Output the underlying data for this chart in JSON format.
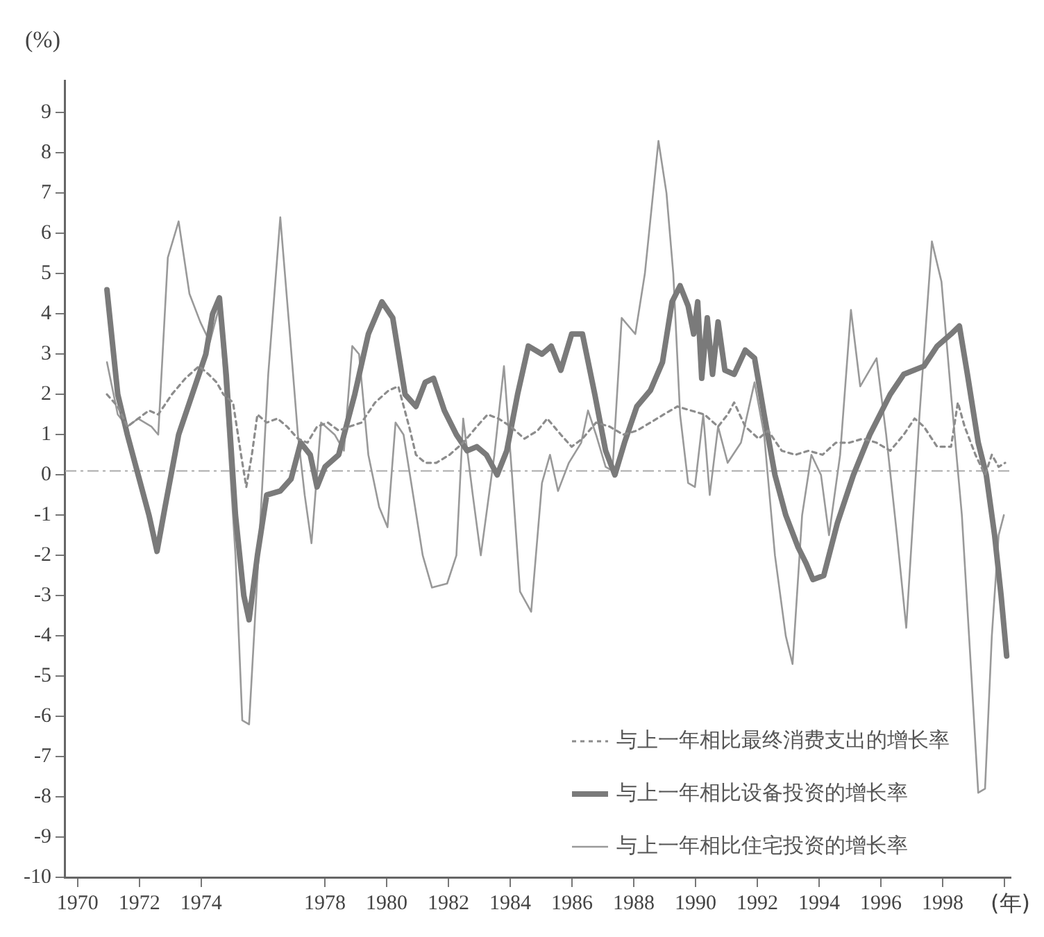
{
  "chart_data": {
    "type": "line",
    "ylabel": "(%)",
    "xlabel": "(年)",
    "xlim": [
      1969.6,
      2000.2
    ],
    "ylim": [
      -10,
      9.8
    ],
    "xticks": [
      1970,
      1972,
      1974,
      1978,
      1980,
      1982,
      1984,
      1986,
      1988,
      1990,
      1992,
      1994,
      1996,
      1998,
      {
        "value": 2000,
        "label": null
      }
    ],
    "yticks": [
      -10,
      -9,
      -8,
      -7,
      -6,
      -5,
      -4,
      -3,
      -2,
      -1,
      0,
      1,
      2,
      3,
      4,
      5,
      6,
      7,
      8,
      9
    ],
    "grid": false,
    "legend": "bottom right",
    "marker": "none",
    "ref_lines": [
      {
        "axis": "y",
        "value": 0.1,
        "color": "#aaaaaa",
        "line_style": "dashed"
      }
    ],
    "series": [
      {
        "name": "与上一年相比最终消费支出的增长率",
        "color": "#8c8c8c",
        "line_style": "dotted",
        "x": [
          1970.95,
          1971.3,
          1971.61,
          1971.96,
          1972.31,
          1972.61,
          1973.05,
          1973.49,
          1973.93,
          1974.24,
          1974.5,
          1974.72,
          1975.03,
          1975.29,
          1975.46,
          1975.64,
          1975.82,
          1976.12,
          1976.47,
          1976.78,
          1977.13,
          1977.44,
          1977.75,
          1978.1,
          1978.45,
          1978.8,
          1979.19,
          1979.63,
          1980.07,
          1980.38,
          1980.73,
          1980.95,
          1981.25,
          1981.61,
          1982.04,
          1982.48,
          1982.92,
          1983.27,
          1983.62,
          1984.02,
          1984.46,
          1984.89,
          1985.2,
          1985.64,
          1985.99,
          1986.34,
          1986.78,
          1987.22,
          1987.66,
          1988.1,
          1988.54,
          1988.97,
          1989.41,
          1989.85,
          1990.29,
          1990.73,
          1991.04,
          1991.25,
          1991.61,
          1992.04,
          1992.35,
          1992.79,
          1993.23,
          1993.66,
          1994.11,
          1994.54,
          1994.98,
          1995.42,
          1995.86,
          1996.3,
          1996.74,
          1997.09,
          1997.39,
          1997.82,
          1998.27,
          1998.49,
          1998.71,
          1999.06,
          1999.37,
          1999.59,
          1999.81,
          2000.02
        ],
        "values": [
          2.0,
          1.7,
          1.2,
          1.4,
          1.6,
          1.5,
          2.0,
          2.4,
          2.7,
          2.5,
          2.3,
          2.0,
          1.8,
          0.5,
          -0.3,
          0.5,
          1.5,
          1.3,
          1.4,
          1.2,
          0.9,
          0.8,
          1.2,
          1.3,
          1.1,
          1.2,
          1.3,
          1.8,
          2.1,
          2.2,
          1.2,
          0.5,
          0.3,
          0.3,
          0.5,
          0.8,
          1.2,
          1.5,
          1.4,
          1.2,
          0.9,
          1.1,
          1.4,
          1.0,
          0.7,
          0.9,
          1.3,
          1.2,
          1.0,
          1.1,
          1.3,
          1.5,
          1.7,
          1.6,
          1.5,
          1.2,
          1.5,
          1.8,
          1.2,
          0.9,
          1.1,
          0.6,
          0.5,
          0.6,
          0.5,
          0.8,
          0.8,
          0.9,
          0.8,
          0.6,
          1.0,
          1.4,
          1.2,
          0.7,
          0.7,
          1.8,
          1.2,
          0.5,
          0.0,
          0.5,
          0.2,
          0.3
        ]
      },
      {
        "name": "与上一年相比设备投资的增长率",
        "color": "#7a7a7a",
        "line_style": "solid",
        "x": [
          1970.95,
          1971.3,
          1971.61,
          1971.96,
          1972.31,
          1972.57,
          1972.83,
          1973.27,
          1973.71,
          1974.15,
          1974.37,
          1974.59,
          1974.81,
          1975.11,
          1975.38,
          1975.55,
          1975.82,
          1976.12,
          1976.56,
          1976.91,
          1977.22,
          1977.53,
          1977.75,
          1978.01,
          1978.45,
          1978.97,
          1979.41,
          1979.85,
          1980.2,
          1980.6,
          1980.95,
          1981.25,
          1981.52,
          1981.87,
          1982.26,
          1982.61,
          1982.92,
          1983.23,
          1983.58,
          1983.89,
          1984.24,
          1984.59,
          1985.03,
          1985.33,
          1985.64,
          1985.99,
          1986.34,
          1986.74,
          1987.09,
          1987.39,
          1987.7,
          1988.1,
          1988.54,
          1988.93,
          1989.24,
          1989.5,
          1989.76,
          1989.94,
          1990.07,
          1990.2,
          1990.38,
          1990.55,
          1990.73,
          1990.95,
          1991.25,
          1991.61,
          1991.91,
          1992.22,
          1992.57,
          1992.92,
          1993.32,
          1993.58,
          1993.8,
          1994.15,
          1994.59,
          1995.11,
          1995.64,
          1996.3,
          1996.74,
          1997.39,
          1997.82,
          1998.27,
          1998.54,
          1998.8,
          1999.15,
          1999.41,
          1999.68,
          1999.89,
          2000.07
        ],
        "values": [
          4.6,
          2.0,
          1.0,
          0.0,
          -1.0,
          -1.9,
          -0.8,
          1.0,
          2.0,
          3.0,
          4.0,
          4.4,
          2.5,
          -1.0,
          -3.0,
          -3.6,
          -2.0,
          -0.5,
          -0.4,
          -0.1,
          0.8,
          0.5,
          -0.3,
          0.2,
          0.5,
          2.0,
          3.5,
          4.3,
          3.9,
          2.0,
          1.7,
          2.3,
          2.4,
          1.6,
          1.0,
          0.6,
          0.7,
          0.5,
          0.0,
          0.6,
          2.0,
          3.2,
          3.0,
          3.2,
          2.6,
          3.5,
          3.5,
          2.0,
          0.6,
          0.0,
          0.8,
          1.7,
          2.1,
          2.8,
          4.3,
          4.7,
          4.2,
          3.5,
          4.3,
          2.4,
          3.9,
          2.5,
          3.8,
          2.6,
          2.5,
          3.1,
          2.9,
          1.5,
          0.0,
          -1.0,
          -1.8,
          -2.2,
          -2.6,
          -2.5,
          -1.2,
          0.0,
          1.0,
          2.0,
          2.5,
          2.7,
          3.2,
          3.5,
          3.7,
          2.5,
          0.8,
          0.0,
          -1.5,
          -3.0,
          -4.5
        ]
      },
      {
        "name": "与上一年相比住宅投资的增长率",
        "color": "#999999",
        "line_style": "solid",
        "x": [
          1970.95,
          1971.3,
          1971.61,
          1971.96,
          1972.39,
          1972.61,
          1972.92,
          1973.27,
          1973.62,
          1973.97,
          1974.28,
          1974.59,
          1974.85,
          1975.11,
          1975.33,
          1975.55,
          1975.82,
          1976.17,
          1976.56,
          1976.87,
          1977.13,
          1977.35,
          1977.57,
          1977.88,
          1978.32,
          1978.62,
          1978.89,
          1979.11,
          1979.41,
          1979.76,
          1980.03,
          1980.29,
          1980.55,
          1980.86,
          1981.17,
          1981.47,
          1981.96,
          1982.26,
          1982.48,
          1982.79,
          1983.05,
          1983.49,
          1983.8,
          1984.06,
          1984.32,
          1984.68,
          1985.03,
          1985.29,
          1985.55,
          1985.9,
          1986.3,
          1986.52,
          1986.78,
          1987.09,
          1987.31,
          1987.61,
          1988.05,
          1988.36,
          1988.8,
          1989.06,
          1989.28,
          1989.5,
          1989.76,
          1989.98,
          1990.25,
          1990.46,
          1990.73,
          1991.04,
          1991.47,
          1991.91,
          1992.22,
          1992.57,
          1992.92,
          1993.14,
          1993.45,
          1993.75,
          1994.06,
          1994.32,
          1994.68,
          1995.03,
          1995.33,
          1995.86,
          1996.17,
          1996.52,
          1996.82,
          1997.25,
          1997.65,
          1997.96,
          1998.27,
          1998.62,
          1998.93,
          1999.15,
          1999.37,
          1999.59,
          1999.81,
          1999.98
        ],
        "values": [
          2.8,
          1.5,
          1.2,
          1.4,
          1.2,
          1.0,
          5.4,
          6.3,
          4.5,
          3.8,
          3.3,
          4.2,
          1.2,
          -2.0,
          -6.1,
          -6.2,
          -2.5,
          2.5,
          6.4,
          3.5,
          1.0,
          -0.5,
          -1.7,
          1.3,
          1.0,
          0.6,
          3.2,
          3.0,
          0.5,
          -0.8,
          -1.3,
          1.3,
          1.0,
          -0.5,
          -2.0,
          -2.8,
          -2.7,
          -2.0,
          1.4,
          -0.5,
          -2.0,
          0.5,
          2.7,
          0.0,
          -2.9,
          -3.4,
          -0.2,
          0.5,
          -0.4,
          0.3,
          0.8,
          1.6,
          1.0,
          0.2,
          0.1,
          3.9,
          3.5,
          5.0,
          8.3,
          7.0,
          5.0,
          1.5,
          -0.2,
          -0.3,
          1.5,
          -0.5,
          1.2,
          0.3,
          0.8,
          2.3,
          1.0,
          -2.0,
          -4.0,
          -4.7,
          -1.0,
          0.5,
          0.0,
          -1.5,
          0.5,
          4.1,
          2.2,
          2.9,
          1.0,
          -1.5,
          -3.8,
          1.5,
          5.8,
          4.8,
          2.0,
          -1.0,
          -5.0,
          -7.9,
          -7.8,
          -4.0,
          -1.5,
          -1.0
        ]
      }
    ]
  }
}
